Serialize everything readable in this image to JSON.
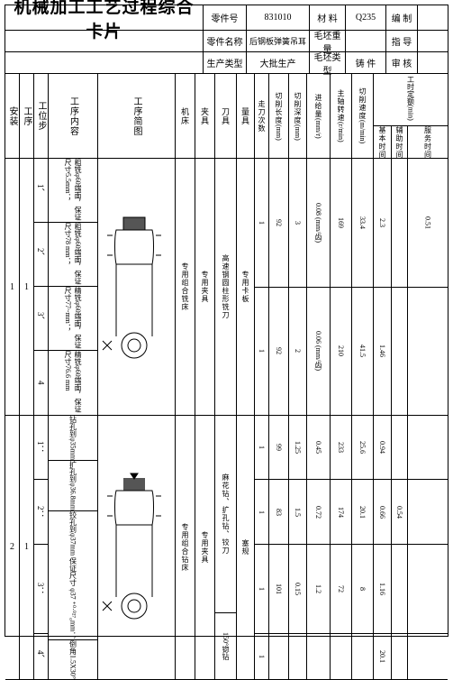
{
  "title": "机械加工工艺过程综合卡片",
  "header": {
    "part_no_label": "零件号",
    "part_no": "831010",
    "material_label": "材 料",
    "material": "Q235",
    "compiled_label": "编 制",
    "part_name_label": "零件名称",
    "part_name": "后钢板弹簧吊耳",
    "blank_weight_label": "毛坯重量",
    "guide_label": "指 导",
    "prod_type_label": "生产类型",
    "prod_type": "大批生产",
    "blank_type_label": "毛坯类型",
    "blank_type": "铸 件",
    "review_label": "审 核"
  },
  "col_headers": {
    "install": "安装",
    "proc": "工序",
    "step": "工位步",
    "content": "工序内容",
    "sketch": "工序简图",
    "machine": "机床",
    "fixture": "夹具",
    "tool": "刀具",
    "gauge": "量具",
    "passes": "走刀次数",
    "length": "切削长度",
    "length_u": "(mm)",
    "depth": "切削深度",
    "depth_u": "(mm)",
    "feed": "进给量",
    "feed_u": "(mm/r)",
    "spindle": "主轴转速",
    "spindle_u": "(r/min)",
    "speed": "切削速度",
    "speed_u": "(m/min)",
    "time_quota": "工时定额(min)",
    "basic_time": "基本时间",
    "aux_time": "辅助时间",
    "serve_time": "服务时间"
  },
  "proc1": {
    "install": "1",
    "proc": "1",
    "steps": [
      "1、",
      "2、",
      "3、",
      "4"
    ],
    "descs": [
      "粗铣φ60端面，保证尺寸5.5mm；",
      "粗铣φ60端面，保证尺寸78 mm；",
      "精铣φ60端面，保证尺寸77~mm；",
      "精铣φ60端面，保证尺寸76.6 mm"
    ],
    "machine": "专用组合铣床",
    "fixture": "专用夹具",
    "tool": "高速钢圆柱形铣刀",
    "gauge": "专用卡板",
    "rows": [
      [
        "1",
        "92",
        "3",
        "0.08 (mm/齿)",
        "169",
        "33.4",
        "2.3",
        "",
        "0.51"
      ],
      [
        "1",
        "92",
        "2",
        "0.06 (mm/齿)",
        "210",
        "41.5",
        "1.46",
        "",
        ""
      ]
    ]
  },
  "proc2": {
    "install": "2",
    "proc": "1",
    "steps": [
      "1：",
      "2：",
      "3：",
      "4、"
    ],
    "descs": [
      "钻孔到φ35mm",
      "扩孔到φ36.8mm",
      "铰孔到φ37mm 保证尺寸 φ37 ⁺⁰·⁰²⁷₀mm；",
      "倒角1.5X30°"
    ],
    "machine": "专用组合钻床",
    "fixture": "专用夹具",
    "tools": [
      "麻花钻、扩孔钻、铰刀",
      "150°锪钻"
    ],
    "gauge": "塞规",
    "rows": [
      [
        "1",
        "99",
        "1.25",
        "0.45",
        "233",
        "25.6",
        "0.94",
        "",
        ""
      ],
      [
        "1",
        "83",
        "1.5",
        "0.72",
        "174",
        "20.1",
        "0.66",
        "0.54",
        ""
      ],
      [
        "1",
        "101",
        "0.15",
        "1.2",
        "72",
        "8",
        "1.16",
        "",
        ""
      ],
      [
        "1",
        "",
        "",
        "",
        "",
        "",
        "20.1",
        "",
        ""
      ]
    ]
  },
  "dims": {
    "c_machine": 22,
    "c_fixture": 22,
    "c_tool": 24,
    "c_gauge": 20,
    "c_passes": 16,
    "c_length": 22,
    "c_depth": 20,
    "c_feed": 26,
    "c_spindle": 24,
    "c_speed": 24,
    "c_basic": 20,
    "c_aux": 18,
    "c_serve": 16
  }
}
